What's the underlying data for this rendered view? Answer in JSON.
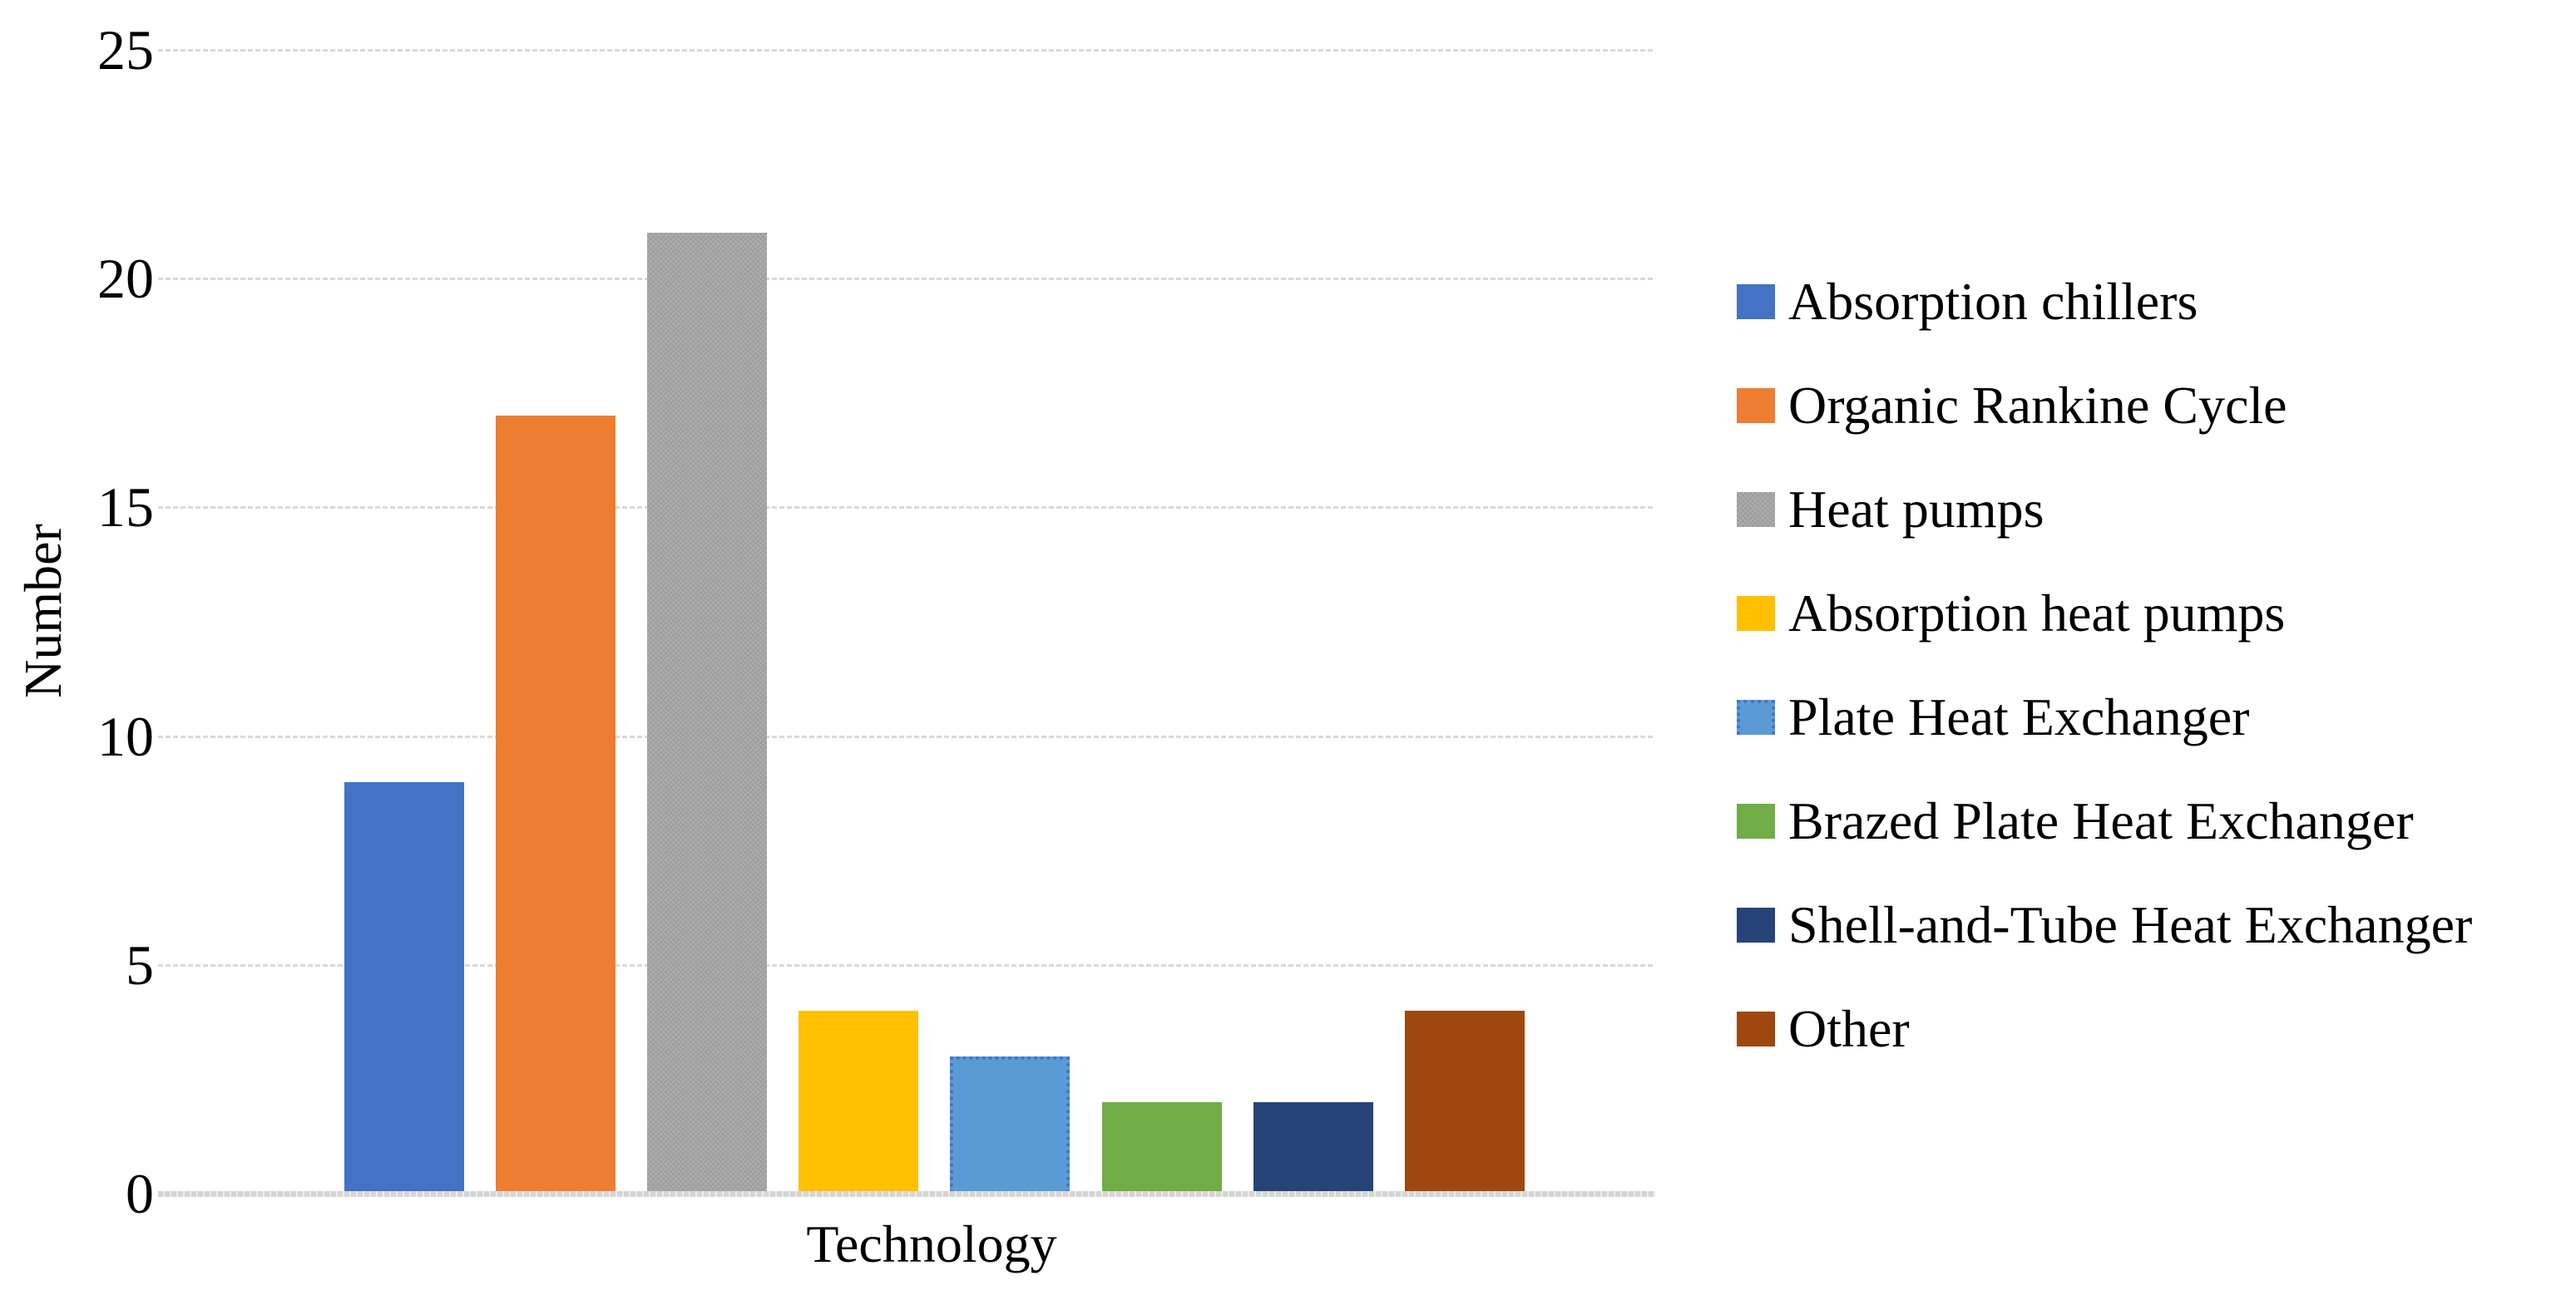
{
  "chart_data": {
    "type": "bar",
    "title": "",
    "xlabel": "Technology",
    "ylabel": "Number",
    "ylim": [
      0,
      25
    ],
    "yticks": [
      0,
      5,
      10,
      15,
      20,
      25
    ],
    "grid": true,
    "legend_position": "right",
    "categories": [
      "Absorption chillers",
      "Organic Rankine Cycle",
      "Heat pumps",
      "Absorption heat pumps",
      "Plate Heat Exchanger",
      "Brazed Plate Heat Exchanger",
      "Shell-and-Tube Heat Exchanger",
      "Other"
    ],
    "values": [
      9,
      17,
      21,
      4,
      3,
      2,
      2,
      4
    ],
    "colors": [
      "#4472C4",
      "#ED7D31",
      "#A6A6A6",
      "#FFC000",
      "#5B9BD5",
      "#70AD47",
      "#264478",
      "#9E480E"
    ],
    "fill_styles": [
      "solid",
      "solid",
      "checker",
      "solid",
      "dotted",
      "solid",
      "solid",
      "solid"
    ],
    "gridline_color": "#D9D9D9",
    "text_color": "#000000"
  }
}
